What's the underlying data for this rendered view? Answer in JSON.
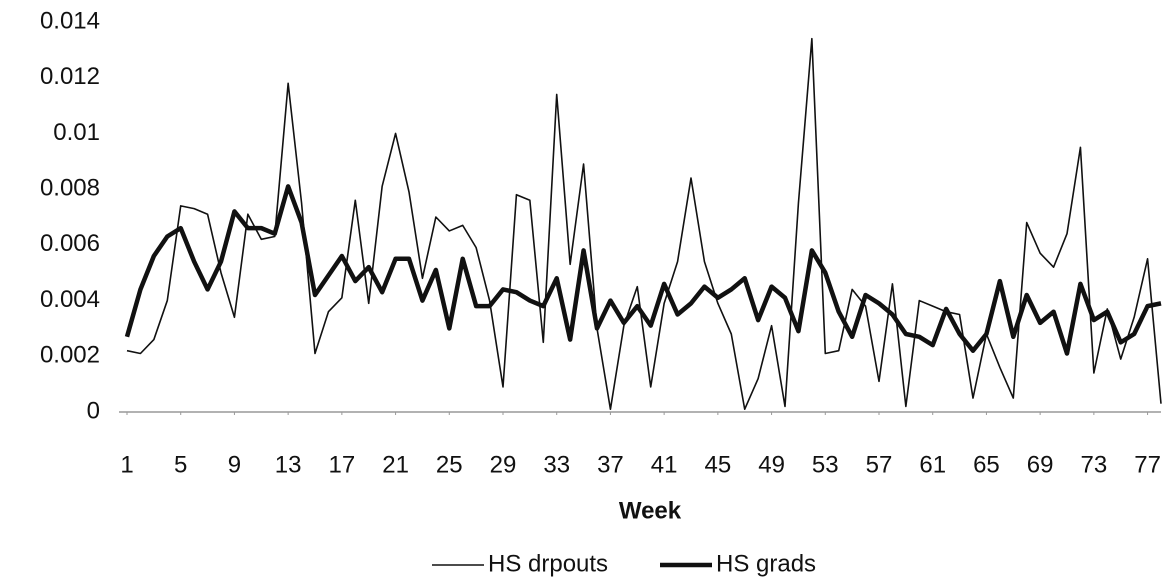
{
  "chart_data": {
    "type": "line",
    "x_label": "Week",
    "x": [
      1,
      2,
      3,
      4,
      5,
      6,
      7,
      8,
      9,
      10,
      11,
      12,
      13,
      14,
      15,
      16,
      17,
      18,
      19,
      20,
      21,
      22,
      23,
      24,
      25,
      26,
      27,
      28,
      29,
      30,
      31,
      32,
      33,
      34,
      35,
      36,
      37,
      38,
      39,
      40,
      41,
      42,
      43,
      44,
      45,
      46,
      47,
      48,
      49,
      50,
      51,
      52,
      53,
      54,
      55,
      56,
      57,
      58,
      59,
      60,
      61,
      62,
      63,
      64,
      65,
      66,
      67,
      68,
      69,
      70,
      71,
      72,
      73,
      74,
      75,
      76,
      77,
      78
    ],
    "xlim": [
      1,
      78
    ],
    "xticks": [
      1,
      5,
      9,
      13,
      17,
      21,
      25,
      29,
      33,
      37,
      41,
      45,
      49,
      53,
      57,
      61,
      65,
      69,
      73,
      77
    ],
    "ylim": [
      0,
      0.014
    ],
    "yticks": [
      0,
      0.002,
      0.004,
      0.006,
      0.008,
      0.01,
      0.012,
      0.014
    ],
    "legend": "bottom",
    "series": [
      {
        "name": "HS drpouts",
        "color": "#111111",
        "width": 1.6,
        "values": [
          0.0022,
          0.0021,
          0.0026,
          0.004,
          0.0074,
          0.0073,
          0.0071,
          0.005,
          0.0034,
          0.0071,
          0.0062,
          0.0063,
          0.0118,
          0.0075,
          0.0021,
          0.0036,
          0.0041,
          0.0076,
          0.0039,
          0.0081,
          0.01,
          0.0079,
          0.0048,
          0.007,
          0.0065,
          0.0067,
          0.0059,
          0.004,
          0.0009,
          0.0078,
          0.0076,
          0.0025,
          0.0114,
          0.0053,
          0.0089,
          0.003,
          0.0001,
          0.0031,
          0.0045,
          0.0009,
          0.0039,
          0.0054,
          0.0084,
          0.0054,
          0.0039,
          0.0028,
          0.0001,
          0.0012,
          0.0031,
          0.0002,
          0.0075,
          0.0134,
          0.0021,
          0.0022,
          0.0044,
          0.0038,
          0.0011,
          0.0046,
          0.0002,
          0.004,
          0.0038,
          0.0036,
          0.0035,
          0.0005,
          0.0028,
          0.0016,
          0.0005,
          0.0068,
          0.0057,
          0.0052,
          0.0064,
          0.0095,
          0.0014,
          0.0037,
          0.0019,
          0.0034,
          0.0055,
          0.0003
        ]
      },
      {
        "name": "HS grads",
        "color": "#111111",
        "width": 4.5,
        "values": [
          0.0027,
          0.0044,
          0.0056,
          0.0063,
          0.0066,
          0.0054,
          0.0044,
          0.0054,
          0.0072,
          0.0066,
          0.0066,
          0.0064,
          0.0081,
          0.0068,
          0.0042,
          0.0049,
          0.0056,
          0.0047,
          0.0052,
          0.0043,
          0.0055,
          0.0055,
          0.004,
          0.0051,
          0.003,
          0.0055,
          0.0038,
          0.0038,
          0.0044,
          0.0043,
          0.004,
          0.0038,
          0.0048,
          0.0026,
          0.0058,
          0.003,
          0.004,
          0.0032,
          0.0038,
          0.0031,
          0.0046,
          0.0035,
          0.0039,
          0.0045,
          0.0041,
          0.0044,
          0.0048,
          0.0033,
          0.0045,
          0.0041,
          0.0029,
          0.0058,
          0.005,
          0.0036,
          0.0027,
          0.0042,
          0.0039,
          0.0035,
          0.0028,
          0.0027,
          0.0024,
          0.0037,
          0.0028,
          0.0022,
          0.0028,
          0.0047,
          0.0027,
          0.0042,
          0.0032,
          0.0036,
          0.0021,
          0.0046,
          0.0033,
          0.0036,
          0.0025,
          0.0028,
          0.0038,
          0.0039
        ]
      }
    ]
  }
}
